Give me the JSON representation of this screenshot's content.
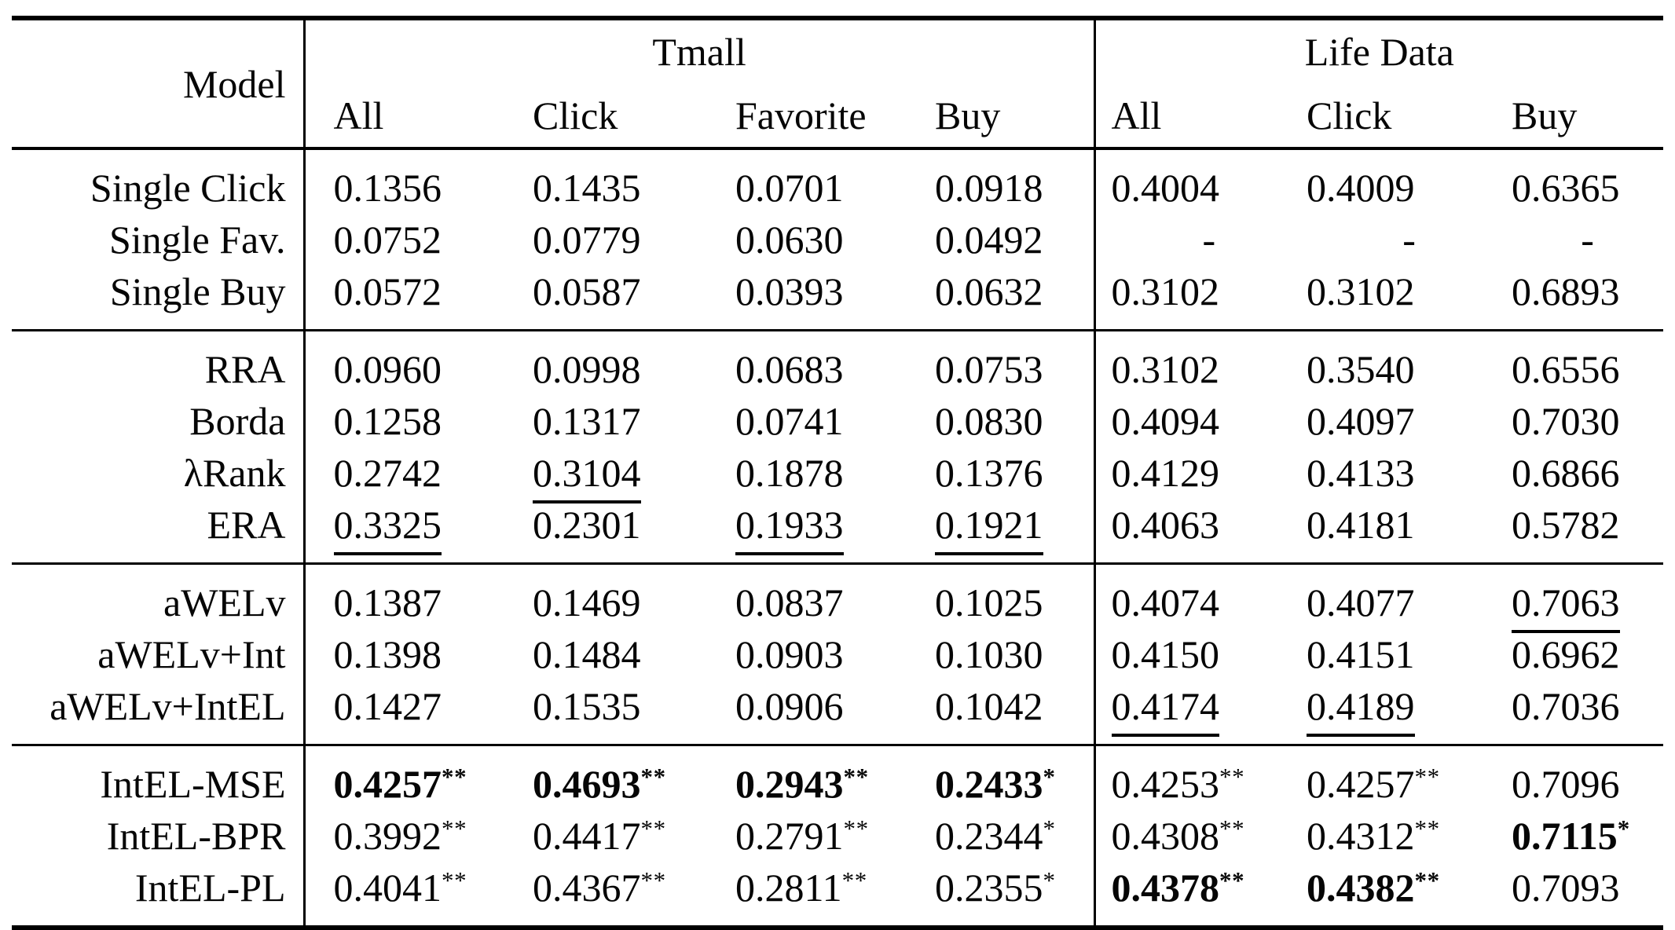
{
  "page": {
    "background_color": "#ffffff",
    "text_color": "#060606",
    "rule_color": "#000000"
  },
  "table": {
    "header": {
      "model": "Model",
      "groups": [
        {
          "label": "Tmall",
          "span": 4
        },
        {
          "label": "Life Data",
          "span": 3
        }
      ],
      "subcolumns": [
        "All",
        "Click",
        "Favorite",
        "Buy",
        "All",
        "Click",
        "Buy"
      ]
    },
    "sections": [
      {
        "rows": [
          {
            "model": "Single Click",
            "cells": [
              {
                "v": "0.1356"
              },
              {
                "v": "0.1435"
              },
              {
                "v": "0.0701"
              },
              {
                "v": "0.0918"
              },
              {
                "v": "0.4004"
              },
              {
                "v": "0.4009"
              },
              {
                "v": "0.6365"
              }
            ]
          },
          {
            "model": "Single Fav.",
            "cells": [
              {
                "v": "0.0752"
              },
              {
                "v": "0.0779"
              },
              {
                "v": "0.0630"
              },
              {
                "v": "0.0492"
              },
              {
                "v": "-",
                "dash": true
              },
              {
                "v": "-",
                "dash": true
              },
              {
                "v": "-",
                "dash": true
              }
            ]
          },
          {
            "model": "Single Buy",
            "cells": [
              {
                "v": "0.0572"
              },
              {
                "v": "0.0587"
              },
              {
                "v": "0.0393"
              },
              {
                "v": "0.0632"
              },
              {
                "v": "0.3102"
              },
              {
                "v": "0.3102"
              },
              {
                "v": "0.6893"
              }
            ]
          }
        ]
      },
      {
        "rows": [
          {
            "model": "RRA",
            "cells": [
              {
                "v": "0.0960"
              },
              {
                "v": "0.0998"
              },
              {
                "v": "0.0683"
              },
              {
                "v": "0.0753"
              },
              {
                "v": "0.3102"
              },
              {
                "v": "0.3540"
              },
              {
                "v": "0.6556"
              }
            ]
          },
          {
            "model": "Borda",
            "cells": [
              {
                "v": "0.1258"
              },
              {
                "v": "0.1317"
              },
              {
                "v": "0.0741"
              },
              {
                "v": "0.0830"
              },
              {
                "v": "0.4094"
              },
              {
                "v": "0.4097"
              },
              {
                "v": "0.7030"
              }
            ]
          },
          {
            "model": "λRank",
            "cells": [
              {
                "v": "0.2742"
              },
              {
                "v": "0.3104",
                "u": true
              },
              {
                "v": "0.1878"
              },
              {
                "v": "0.1376"
              },
              {
                "v": "0.4129"
              },
              {
                "v": "0.4133"
              },
              {
                "v": "0.6866"
              }
            ]
          },
          {
            "model": "ERA",
            "cells": [
              {
                "v": "0.3325",
                "u": true
              },
              {
                "v": "0.2301"
              },
              {
                "v": "0.1933",
                "u": true
              },
              {
                "v": "0.1921",
                "u": true
              },
              {
                "v": "0.4063"
              },
              {
                "v": "0.4181"
              },
              {
                "v": "0.5782"
              }
            ]
          }
        ]
      },
      {
        "rows": [
          {
            "model": "aWELv",
            "cells": [
              {
                "v": "0.1387"
              },
              {
                "v": "0.1469"
              },
              {
                "v": "0.0837"
              },
              {
                "v": "0.1025"
              },
              {
                "v": "0.4074"
              },
              {
                "v": "0.4077"
              },
              {
                "v": "0.7063",
                "u": true
              }
            ]
          },
          {
            "model": "aWELv+Int",
            "cells": [
              {
                "v": "0.1398"
              },
              {
                "v": "0.1484"
              },
              {
                "v": "0.0903"
              },
              {
                "v": "0.1030"
              },
              {
                "v": "0.4150"
              },
              {
                "v": "0.4151"
              },
              {
                "v": "0.6962"
              }
            ]
          },
          {
            "model": "aWELv+IntEL",
            "cells": [
              {
                "v": "0.1427"
              },
              {
                "v": "0.1535"
              },
              {
                "v": "0.0906"
              },
              {
                "v": "0.1042"
              },
              {
                "v": "0.4174",
                "u": true
              },
              {
                "v": "0.4189",
                "u": true
              },
              {
                "v": "0.7036"
              }
            ]
          }
        ]
      },
      {
        "rows": [
          {
            "model": "IntEL-MSE",
            "cells": [
              {
                "v": "0.4257",
                "sup": "**",
                "b": true
              },
              {
                "v": "0.4693",
                "sup": "**",
                "b": true
              },
              {
                "v": "0.2943",
                "sup": "**",
                "b": true
              },
              {
                "v": "0.2433",
                "sup": "*",
                "b": true
              },
              {
                "v": "0.4253",
                "sup": "**"
              },
              {
                "v": "0.4257",
                "sup": "**"
              },
              {
                "v": "0.7096"
              }
            ]
          },
          {
            "model": "IntEL-BPR",
            "cells": [
              {
                "v": "0.3992",
                "sup": "**"
              },
              {
                "v": "0.4417",
                "sup": "**"
              },
              {
                "v": "0.2791",
                "sup": "**"
              },
              {
                "v": "0.2344",
                "sup": "*"
              },
              {
                "v": "0.4308",
                "sup": "**"
              },
              {
                "v": "0.4312",
                "sup": "**"
              },
              {
                "v": "0.7115",
                "sup": "*",
                "b": true
              }
            ]
          },
          {
            "model": "IntEL-PL",
            "cells": [
              {
                "v": "0.4041",
                "sup": "**"
              },
              {
                "v": "0.4367",
                "sup": "**"
              },
              {
                "v": "0.2811",
                "sup": "**"
              },
              {
                "v": "0.2355",
                "sup": "*"
              },
              {
                "v": "0.4378",
                "sup": "**",
                "b": true
              },
              {
                "v": "0.4382",
                "sup": "**",
                "b": true
              },
              {
                "v": "0.7093"
              }
            ]
          }
        ]
      }
    ]
  }
}
